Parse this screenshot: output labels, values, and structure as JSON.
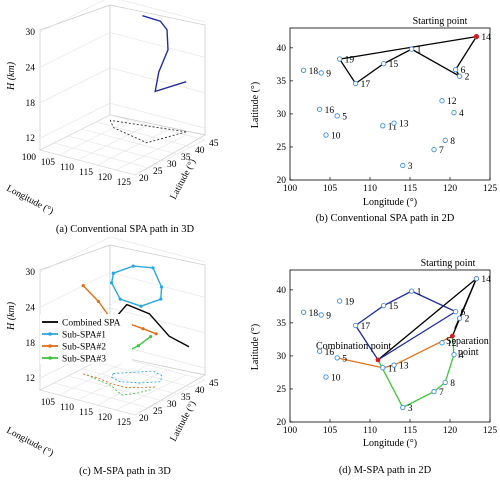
{
  "colors": {
    "black": "#000000",
    "blue_path": "#1f2d9c",
    "cyan": "#2aa7e0",
    "orange": "#e07018",
    "green": "#3ec43e",
    "red": "#d81a1a",
    "point_blue": "#3b8fe0",
    "grid": "#e6e6e6",
    "dotted": "#333333"
  },
  "chart_data": [
    {
      "id": "a",
      "type": "line",
      "projection": "3d",
      "caption": "(a) Conventional SPA path in 3D",
      "ylabel": "H (km)",
      "xlabel_long": "Longitude (°)",
      "xlabel_lat": "Latitude (°)",
      "zticks": [
        "30",
        "24",
        "18",
        "12"
      ],
      "longticks": [
        "100",
        "105",
        "110",
        "115",
        "120",
        "125"
      ],
      "latticks": [
        "20",
        "25",
        "30",
        "35",
        "40",
        "45"
      ],
      "series": [
        {
          "style": "solid-blue",
          "points_3d": [
            [
              110,
              43,
              29
            ],
            [
              114,
              44,
              28.5
            ],
            [
              115,
              45,
              27
            ],
            [
              116,
              44,
              24
            ],
            [
              117,
              41,
              23
            ],
            [
              118,
              38,
              22
            ],
            [
              120,
              34,
              20
            ],
            [
              123,
              41,
              20.5
            ]
          ]
        },
        {
          "style": "dashed-black-ground",
          "points_3d": [
            [
              123,
              41,
              12
            ],
            [
              106,
              37,
              12
            ],
            [
              109,
              34,
              12
            ],
            [
              120,
              31,
              12
            ],
            [
              123,
              41,
              12
            ]
          ]
        }
      ]
    },
    {
      "id": "b",
      "type": "scatter",
      "caption": "(b) Conventional SPA path in 2D",
      "xlabel": "Longitude (°)",
      "ylabel": "Latitude (°)",
      "xlim": [
        100,
        125
      ],
      "ylim": [
        20,
        43
      ],
      "xticks": [
        "100",
        "105",
        "110",
        "115",
        "120",
        "125"
      ],
      "yticks": [
        "20",
        "25",
        "30",
        "35",
        "40"
      ],
      "annotation": "Starting point",
      "points": [
        {
          "label": "1",
          "x": 115.2,
          "y": 39.8
        },
        {
          "label": "2",
          "x": 121.2,
          "y": 35.7
        },
        {
          "label": "3",
          "x": 114.1,
          "y": 22.2
        },
        {
          "label": "4",
          "x": 120.5,
          "y": 30.2
        },
        {
          "label": "6",
          "x": 120.7,
          "y": 36.7
        },
        {
          "label": "7",
          "x": 118.0,
          "y": 24.6
        },
        {
          "label": "8",
          "x": 119.4,
          "y": 26.0
        },
        {
          "label": "9",
          "x": 103.9,
          "y": 36.2
        },
        {
          "label": "10",
          "x": 104.5,
          "y": 26.8
        },
        {
          "label": "11",
          "x": 111.6,
          "y": 28.2
        },
        {
          "label": "12",
          "x": 119.0,
          "y": 32.0
        },
        {
          "label": "13",
          "x": 113.0,
          "y": 28.6
        },
        {
          "label": "14",
          "x": 123.3,
          "y": 41.7
        },
        {
          "label": "15",
          "x": 111.7,
          "y": 37.6
        },
        {
          "label": "16",
          "x": 103.7,
          "y": 30.7
        },
        {
          "label": "17",
          "x": 108.2,
          "y": 34.6
        },
        {
          "label": "18",
          "x": 101.7,
          "y": 36.6
        },
        {
          "label": "19",
          "x": 106.2,
          "y": 38.3
        },
        {
          "label": "5",
          "x": 105.9,
          "y": 29.7
        }
      ],
      "path": [
        "14",
        "19",
        "17",
        "15",
        "1",
        "2",
        "6",
        "14"
      ]
    },
    {
      "id": "c",
      "type": "line",
      "projection": "3d",
      "caption": "(c) M-SPA path in 3D",
      "ylabel": "H (km)",
      "xlabel_long": "Longitude (°)",
      "xlabel_lat": "Latitude (°)",
      "zticks": [
        "30",
        "24",
        "18",
        "12"
      ],
      "longticks": [
        "105",
        "110",
        "115",
        "120",
        "125"
      ],
      "latticks": [
        "20",
        "25",
        "30",
        "35",
        "40",
        "45"
      ],
      "legend": [
        "Combined SPA",
        "Sub-SPA#1",
        "Sub-SPA#2",
        "Sub-SPA#3"
      ],
      "legend_position": "left-middle",
      "series": [
        {
          "name": "Combined SPA",
          "color": "black",
          "points_3d": [
            [
              111,
              28,
              20
            ],
            [
              114,
              32,
              24
            ],
            [
              117,
              36,
              22
            ],
            [
              120,
              39,
              18
            ],
            [
              123,
              42,
              16
            ]
          ]
        },
        {
          "name": "Sub-SPA#1",
          "color": "cyan",
          "points_3d": [
            [
              109,
              34,
              28
            ],
            [
              112,
              37,
              29
            ],
            [
              115,
              40,
              28.5
            ],
            [
              118,
              39,
              26
            ],
            [
              120,
              36,
              25
            ],
            [
              117,
              33,
              24
            ],
            [
              113,
              31,
              25
            ],
            [
              110,
              32,
              27
            ],
            [
              109,
              34,
              28
            ]
          ]
        },
        {
          "name": "Sub-SPA#2",
          "color": "orange",
          "points_3d": [
            [
              104,
              30,
              26
            ],
            [
              108,
              30,
              24
            ],
            [
              112,
              29,
              22
            ],
            [
              116,
              29,
              22
            ],
            [
              119,
              31,
              21
            ],
            [
              121,
              33,
              20
            ]
          ]
        },
        {
          "name": "Sub-SPA#3",
          "color": "green",
          "points_3d": [
            [
              105,
              30,
              21
            ],
            [
              109,
              29,
              19
            ],
            [
              113,
              28,
              17
            ],
            [
              116,
              26,
              16
            ],
            [
              118,
              25,
              18
            ],
            [
              120,
              28,
              19
            ],
            [
              121,
              31,
              20
            ]
          ]
        }
      ]
    },
    {
      "id": "d",
      "type": "scatter",
      "caption": "(d) M-SPA path in 2D",
      "xlabel": "Longitude (°)",
      "ylabel": "Latitude (°)",
      "xlim": [
        100,
        125
      ],
      "ylim": [
        20,
        43
      ],
      "xticks": [
        "100",
        "105",
        "110",
        "115",
        "120",
        "125"
      ],
      "yticks": [
        "20",
        "25",
        "30",
        "35",
        "40"
      ],
      "annotations": [
        "Starting point",
        "Separation point",
        "Combination point"
      ],
      "points": [
        {
          "label": "1",
          "x": 115.2,
          "y": 39.8
        },
        {
          "label": "2",
          "x": 121.2,
          "y": 35.7
        },
        {
          "label": "3",
          "x": 114.1,
          "y": 22.2
        },
        {
          "label": "4",
          "x": 120.5,
          "y": 30.2
        },
        {
          "label": "5",
          "x": 105.9,
          "y": 29.7
        },
        {
          "label": "6",
          "x": 120.7,
          "y": 36.7
        },
        {
          "label": "7",
          "x": 118.0,
          "y": 24.6
        },
        {
          "label": "8",
          "x": 119.4,
          "y": 26.0
        },
        {
          "label": "9",
          "x": 103.9,
          "y": 36.2
        },
        {
          "label": "10",
          "x": 104.5,
          "y": 26.8
        },
        {
          "label": "11",
          "x": 111.6,
          "y": 28.2
        },
        {
          "label": "12",
          "x": 119.0,
          "y": 32.0
        },
        {
          "label": "13",
          "x": 113.0,
          "y": 28.6
        },
        {
          "label": "14",
          "x": 123.3,
          "y": 41.7
        },
        {
          "label": "15",
          "x": 111.7,
          "y": 37.6
        },
        {
          "label": "16",
          "x": 103.7,
          "y": 30.7
        },
        {
          "label": "17",
          "x": 108.2,
          "y": 34.6
        },
        {
          "label": "18",
          "x": 101.7,
          "y": 36.6
        },
        {
          "label": "19",
          "x": 106.2,
          "y": 38.3
        }
      ],
      "paths": [
        {
          "color": "black",
          "coords": [
            [
              123.3,
              41.7
            ],
            [
              111.0,
              29.4
            ]
          ]
        },
        {
          "color": "black",
          "coords": [
            [
              123.3,
              41.7
            ],
            [
              120.6,
              34.1
            ]
          ]
        },
        {
          "color": "black",
          "coords": [
            [
              123.3,
              41.7
            ],
            [
              120.3,
              33.0
            ]
          ]
        },
        {
          "color": "blue",
          "coords": [
            [
              120.7,
              36.7
            ],
            [
              115.2,
              39.8
            ],
            [
              111.7,
              37.6
            ],
            [
              108.2,
              34.6
            ],
            [
              111.0,
              29.4
            ],
            [
              120.7,
              36.7
            ]
          ]
        },
        {
          "color": "orange",
          "coords": [
            [
              120.3,
              33.0
            ],
            [
              113.0,
              28.6
            ],
            [
              111.6,
              28.2
            ],
            [
              105.9,
              29.7
            ]
          ]
        },
        {
          "color": "green",
          "coords": [
            [
              120.3,
              33.0
            ],
            [
              120.5,
              30.2
            ],
            [
              119.4,
              26.0
            ],
            [
              118.0,
              24.6
            ],
            [
              114.1,
              22.2
            ],
            [
              111.0,
              29.4
            ]
          ]
        }
      ]
    }
  ]
}
